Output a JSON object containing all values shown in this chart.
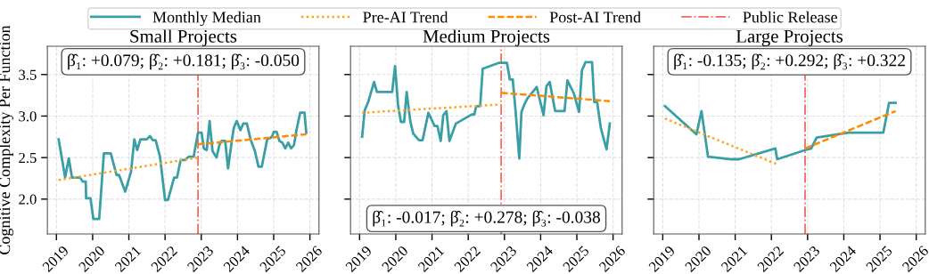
{
  "chart_data": [
    {
      "type": "line",
      "title": "Small Projects",
      "ylabel": "Cognitive Complexity Per Function",
      "legend": "top",
      "grid": true,
      "marker": "none",
      "xlim": [
        2018.75,
        2026.25
      ],
      "xticks": [
        2019,
        2020,
        2021,
        2022,
        2023,
        2024,
        2025,
        2026
      ],
      "ylim": [
        1.58,
        3.84
      ],
      "yticks": [
        {
          "value": 2.0,
          "label": "2.0"
        },
        2.5,
        {
          "value": 3.0,
          "label": "3.0"
        },
        3.5
      ],
      "annotations": [
        "β̂₁: +0.079; β̂₂: +0.181; β̂₃: -0.050"
      ],
      "ref_lines": [
        {
          "axis": "x",
          "value": 2022.91,
          "label": "Public Release",
          "color": "#f26b5b",
          "line_style": "dashdot"
        }
      ],
      "series": [
        {
          "name": "Monthly Median",
          "color": "#3a9ea5",
          "line_style": "solid",
          "x": [
            2019.06,
            2019.16,
            2019.24,
            2019.34,
            2019.43,
            2019.65,
            2019.73,
            2019.81,
            2019.82,
            2019.94,
            2020.02,
            2020.18,
            2020.31,
            2020.5,
            2020.66,
            2020.73,
            2020.9,
            2021.06,
            2021.15,
            2021.23,
            2021.32,
            2021.5,
            2021.58,
            2021.66,
            2021.74,
            2021.86,
            2022.0,
            2022.08,
            2022.25,
            2022.33,
            2022.43,
            2022.55,
            2022.65,
            2022.79,
            2022.83,
            2022.91,
            2023.01,
            2023.07,
            2023.15,
            2023.23,
            2023.31,
            2023.42,
            2023.5,
            2023.56,
            2023.66,
            2023.74,
            2023.84,
            2023.9,
            2023.98,
            2024.08,
            2024.16,
            2024.26,
            2024.36,
            2024.48,
            2024.58,
            2024.67,
            2024.82,
            2024.92,
            2024.96,
            2025.0,
            2025.08,
            2025.16,
            2025.24,
            2025.32,
            2025.4,
            2025.48,
            2025.56,
            2025.63,
            2025.73,
            2025.85,
            2025.9
          ],
          "values": [
            2.72,
            2.47,
            2.26,
            2.49,
            2.26,
            2.26,
            2.21,
            2.21,
            2.01,
            2.01,
            1.76,
            1.76,
            2.55,
            2.55,
            2.29,
            2.29,
            2.09,
            2.33,
            2.72,
            2.59,
            2.72,
            2.72,
            2.76,
            2.71,
            2.71,
            2.51,
            1.99,
            1.99,
            2.26,
            2.26,
            2.47,
            2.47,
            2.51,
            2.51,
            2.61,
            2.8,
            2.8,
            2.61,
            2.59,
            2.94,
            2.58,
            2.5,
            2.65,
            2.7,
            2.7,
            2.37,
            2.69,
            2.86,
            2.94,
            2.83,
            2.91,
            2.91,
            2.72,
            2.58,
            2.39,
            2.39,
            2.72,
            2.74,
            2.76,
            2.81,
            2.81,
            2.7,
            2.68,
            2.61,
            2.68,
            2.61,
            2.65,
            2.83,
            3.04,
            3.04,
            2.8
          ]
        },
        {
          "name": "Pre-AI Trend",
          "color": "#ffa31a",
          "line_style": "dotted",
          "x": [
            2019.06,
            2022.91
          ],
          "values": [
            2.23,
            2.5
          ]
        },
        {
          "name": "Post-AI Trend",
          "color": "#ff8c00",
          "line_style": "dashed",
          "x": [
            2022.91,
            2025.9
          ],
          "values": [
            2.66,
            2.78
          ]
        }
      ]
    },
    {
      "type": "line",
      "title": "Medium Projects",
      "grid": true,
      "marker": "none",
      "tick_labels": "x",
      "xlim": [
        2018.75,
        2026.25
      ],
      "xticks": [
        2019,
        2020,
        2021,
        2022,
        2023,
        2024,
        2025,
        2026
      ],
      "ylim": [
        1.58,
        3.84
      ],
      "yticks": [
        {
          "value": 2.0,
          "label": null
        },
        {
          "value": 2.5,
          "label": null
        },
        {
          "value": 3.0,
          "label": null
        },
        {
          "value": 3.5,
          "label": null
        }
      ],
      "annotations": [
        "β̂₁: -0.017; β̂₂: +0.278; β̂₃: -0.038"
      ],
      "ref_lines": [
        {
          "axis": "x",
          "value": 2022.91,
          "color": "#f26b5b",
          "line_style": "dashdot"
        }
      ],
      "series": [
        {
          "color": "#3a9ea5",
          "line_style": "solid",
          "x": [
            2019.07,
            2019.14,
            2019.23,
            2019.4,
            2019.48,
            2019.56,
            2019.9,
            2019.98,
            2020.06,
            2020.14,
            2020.23,
            2020.3,
            2020.4,
            2020.48,
            2020.64,
            2020.74,
            2020.9,
            2021.07,
            2021.15,
            2021.24,
            2021.31,
            2021.4,
            2021.48,
            2021.66,
            2022.1,
            2022.17,
            2022.22,
            2022.33,
            2022.4,
            2022.84,
            2023.07,
            2023.15,
            2023.23,
            2023.31,
            2023.41,
            2023.47,
            2023.55,
            2023.63,
            2023.89,
            2024.08,
            2024.16,
            2024.25,
            2024.4,
            2024.66,
            2024.74,
            2024.92,
            2025.06,
            2025.14,
            2025.24,
            2025.42,
            2025.48,
            2025.56,
            2025.66,
            2025.82,
            2025.91
          ],
          "values": [
            2.75,
            3.07,
            3.16,
            3.41,
            3.29,
            3.29,
            3.29,
            3.6,
            3.14,
            2.93,
            2.93,
            3.29,
            2.94,
            2.79,
            2.71,
            2.71,
            3.04,
            2.88,
            2.88,
            2.7,
            3.01,
            3.06,
            2.7,
            2.91,
            3.02,
            3.02,
            3.12,
            3.12,
            3.57,
            3.64,
            3.64,
            3.44,
            3.44,
            3.05,
            2.49,
            3.05,
            3.14,
            3.21,
            3.35,
            3.01,
            3.36,
            3.41,
            3.06,
            3.06,
            3.43,
            3.27,
            3.05,
            3.55,
            3.65,
            3.65,
            3.17,
            3.17,
            2.86,
            2.6,
            2.91
          ]
        },
        {
          "color": "#ffa31a",
          "line_style": "dotted",
          "x": [
            2019.07,
            2022.91
          ],
          "values": [
            3.04,
            3.14
          ]
        },
        {
          "color": "#ff8c00",
          "line_style": "dashed",
          "x": [
            2022.91,
            2025.91
          ],
          "values": [
            3.28,
            3.18
          ]
        }
      ]
    },
    {
      "type": "line",
      "title": "Large Projects",
      "grid": true,
      "marker": "none",
      "tick_labels": "x",
      "xlim": [
        2018.75,
        2026.25
      ],
      "xticks": [
        2019,
        2020,
        2021,
        2022,
        2023,
        2024,
        2025,
        2026
      ],
      "ylim": [
        1.58,
        3.84
      ],
      "yticks": [
        {
          "value": 2.0,
          "label": null
        },
        {
          "value": 2.5,
          "label": null
        },
        {
          "value": 3.0,
          "label": null
        },
        {
          "value": 3.5,
          "label": null
        }
      ],
      "annotations": [
        "β̂₁: -0.135; β̂₂: +0.292; β̂₃: +0.322"
      ],
      "ref_lines": [
        {
          "axis": "x",
          "value": 2022.93,
          "color": "#f26b5b",
          "line_style": "dashdot"
        }
      ],
      "series": [
        {
          "color": "#3a9ea5",
          "line_style": "solid",
          "x": [
            2019.06,
            2019.93,
            2020.07,
            2020.25,
            2020.9,
            2021.11,
            2022.11,
            2022.16,
            2022.93,
            2023.1,
            2023.25,
            2024.13,
            2025.09,
            2025.25,
            2025.43
          ],
          "values": [
            3.12,
            2.78,
            3.06,
            2.51,
            2.48,
            2.48,
            2.61,
            2.48,
            2.59,
            2.61,
            2.74,
            2.8,
            2.8,
            3.16,
            3.16
          ]
        },
        {
          "color": "#ffa31a",
          "line_style": "dotted",
          "x": [
            2019.06,
            2022.16
          ],
          "values": [
            2.97,
            2.42
          ]
        },
        {
          "color": "#ff8c00",
          "line_style": "dashed",
          "x": [
            2022.93,
            2025.43
          ],
          "values": [
            2.61,
            3.06
          ]
        }
      ]
    }
  ]
}
